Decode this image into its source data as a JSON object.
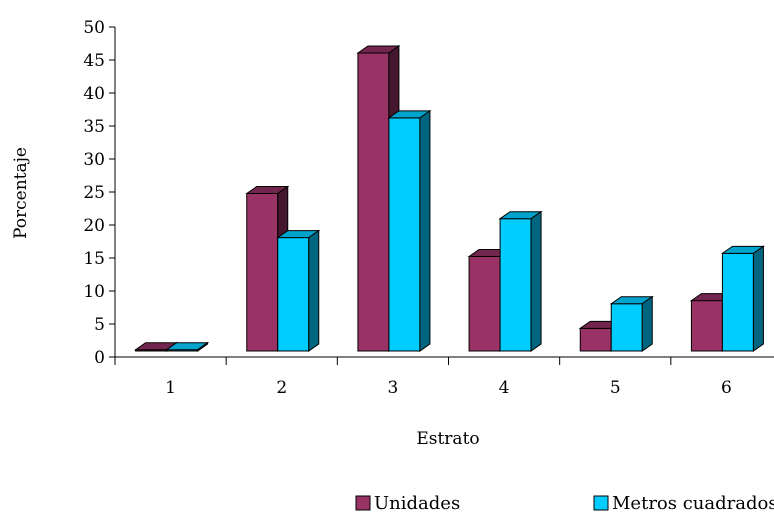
{
  "chart_data": {
    "type": "bar",
    "title": "",
    "xlabel": "Estrato",
    "ylabel": "Porcentaje",
    "categories": [
      "1",
      "2",
      "3",
      "4",
      "5",
      "6"
    ],
    "ylim": [
      0,
      50
    ],
    "yticks": [
      "0",
      "5",
      "10",
      "15",
      "20",
      "25",
      "30",
      "35",
      "40",
      "45",
      "50"
    ],
    "grid": false,
    "legend_position": "bottom",
    "style": "3d-bar",
    "series": [
      {
        "name": "Unidades",
        "color": "#993366",
        "values": [
          0.2,
          25,
          47.3,
          15,
          3.6,
          8
        ]
      },
      {
        "name": "Metros cuadrados",
        "color": "#00CCFF",
        "values": [
          0.2,
          18,
          37,
          21,
          7.5,
          15.5
        ]
      }
    ]
  }
}
